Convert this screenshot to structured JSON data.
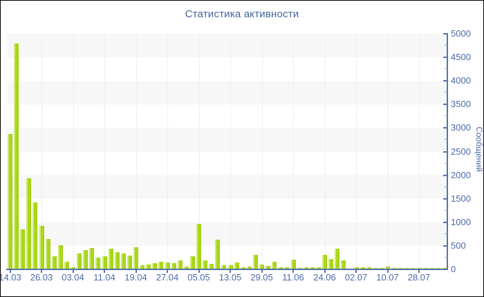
{
  "chart": {
    "title": "Статистика активности",
    "colors": {
      "bar": "#a8d818",
      "bar_highlight": "#cfe97c",
      "axis": "#5572a9",
      "tick_text": "#4a69a8",
      "title_text": "#44639c",
      "stripe": "#f7f7f7",
      "background": "#ffffff"
    }
  },
  "chart_data": {
    "type": "bar",
    "title": "Статистика активности",
    "xlabel": "",
    "ylabel": "Сообщений",
    "ylim": [
      0,
      5000
    ],
    "y_major_step": 500,
    "y_minor_step": 250,
    "y_tick_labels": [
      "0",
      "500",
      "1000",
      "1500",
      "2000",
      "2500",
      "3000",
      "3500",
      "4000",
      "4500",
      "5000"
    ],
    "legend": "none",
    "grid": "horizontal-bands-and-faint-vertical",
    "x_tick_labels": [
      "14.03",
      "26.03",
      "03.04",
      "11.04",
      "19.04",
      "27.04",
      "05.05",
      "13.05",
      "29.05",
      "11.06",
      "24.06",
      "02.07",
      "10.07",
      "28.07"
    ],
    "x_tick_bar_indices": [
      0,
      5,
      10,
      15,
      20,
      25,
      30,
      35,
      40,
      45,
      50,
      55,
      60,
      65
    ],
    "values": [
      2880,
      4800,
      850,
      1930,
      1420,
      925,
      640,
      280,
      510,
      160,
      40,
      330,
      415,
      450,
      245,
      280,
      440,
      360,
      330,
      295,
      465,
      85,
      105,
      130,
      155,
      150,
      130,
      190,
      60,
      280,
      965,
      190,
      110,
      625,
      95,
      90,
      145,
      40,
      60,
      305,
      105,
      75,
      155,
      40,
      50,
      210,
      35,
      40,
      40,
      50,
      315,
      220,
      440,
      185,
      10,
      50,
      50,
      45,
      35,
      25,
      60,
      30,
      35,
      30,
      30,
      35,
      25,
      30,
      25,
      30
    ]
  }
}
